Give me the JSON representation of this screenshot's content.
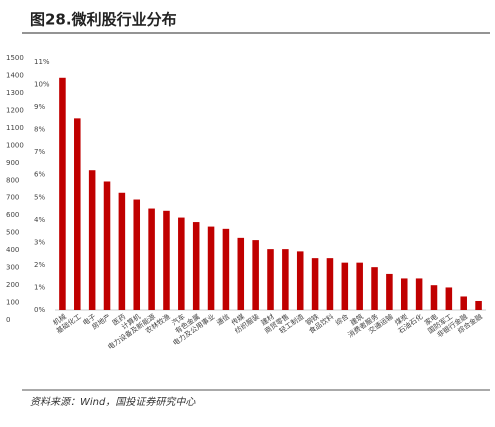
{
  "chart_data": {
    "type": "bar",
    "title": "图28.微利股行业分布",
    "source": "资料来源：Wind，国投证券研究中心",
    "categories": [
      "机械",
      "基础化工",
      "电子",
      "房地产",
      "医药",
      "计算机",
      "电力设备及新能源",
      "农林牧渔",
      "汽车",
      "有色金属",
      "电力及公用事业",
      "通信",
      "传媒",
      "纺织服装",
      "建材",
      "商贸零售",
      "轻工制造",
      "钢铁",
      "食品饮料",
      "综合",
      "建筑",
      "消费者服务",
      "交通运输",
      "煤炭",
      "石油石化",
      "家电",
      "国防军工",
      "非银行金融",
      "综合金融"
    ],
    "series": [
      {
        "color": "#c00000",
        "axis": "y2",
        "values": [
          10.3,
          8.5,
          6.2,
          5.7,
          5.2,
          4.9,
          4.5,
          4.4,
          4.1,
          3.9,
          3.7,
          3.6,
          3.2,
          3.1,
          2.7,
          2.7,
          2.6,
          2.3,
          2.3,
          2.1,
          2.1,
          1.9,
          1.6,
          1.4,
          1.4,
          1.1,
          1.0,
          0.6,
          0.4
        ]
      }
    ],
    "ylim": [
      0,
      1500
    ],
    "yticks": [
      0,
      100,
      200,
      300,
      400,
      500,
      600,
      700,
      800,
      900,
      1000,
      1100,
      1200,
      1300,
      1400,
      1500
    ],
    "y2lim": [
      0,
      11
    ],
    "y2ticks": [
      {
        "value": 0,
        "label": "0%"
      },
      {
        "value": 1,
        "label": "1%"
      },
      {
        "value": 2,
        "label": "2%"
      },
      {
        "value": 3,
        "label": "3%"
      },
      {
        "value": 4,
        "label": "4%"
      },
      {
        "value": 5,
        "label": "5%"
      },
      {
        "value": 6,
        "label": "6%"
      },
      {
        "value": 7,
        "label": "7%"
      },
      {
        "value": 8,
        "label": "8%"
      },
      {
        "value": 9,
        "label": "9%"
      },
      {
        "value": 10,
        "label": "10%"
      },
      {
        "value": 11,
        "label": "11%"
      }
    ]
  }
}
